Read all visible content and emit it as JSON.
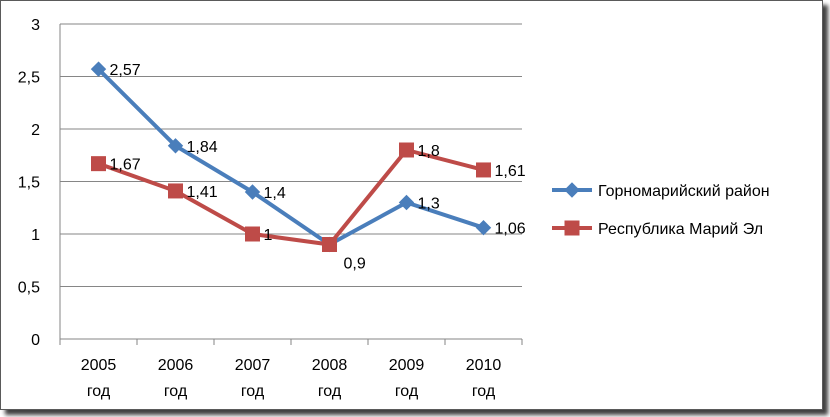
{
  "chart_data": {
    "type": "line",
    "categories": [
      [
        "2005",
        "год"
      ],
      [
        "2006",
        "год"
      ],
      [
        "2007",
        "год"
      ],
      [
        "2008",
        "год"
      ],
      [
        "2009",
        "год"
      ],
      [
        "2010",
        "год"
      ]
    ],
    "ylim": [
      0,
      3
    ],
    "yticks": [
      "0",
      "0,5",
      "1",
      "1,5",
      "2",
      "2,5",
      "3"
    ],
    "grid": true,
    "legend_position": "right",
    "series": [
      {
        "name": "Горномарийский район",
        "values": [
          2.57,
          1.84,
          1.4,
          0.9,
          1.3,
          1.06
        ],
        "labels": [
          "2,57",
          "1,84",
          "1,4",
          "0,9",
          "1,3",
          "1,06"
        ],
        "color": "#4a7ebb",
        "marker": "diamond"
      },
      {
        "name": "Республика Марий Эл",
        "values": [
          1.67,
          1.41,
          1.0,
          0.9,
          1.8,
          1.61
        ],
        "labels": [
          "1,67",
          "1,41",
          "1",
          "",
          "1,8",
          "1,61"
        ],
        "color": "#be4b48",
        "marker": "square"
      }
    ]
  }
}
